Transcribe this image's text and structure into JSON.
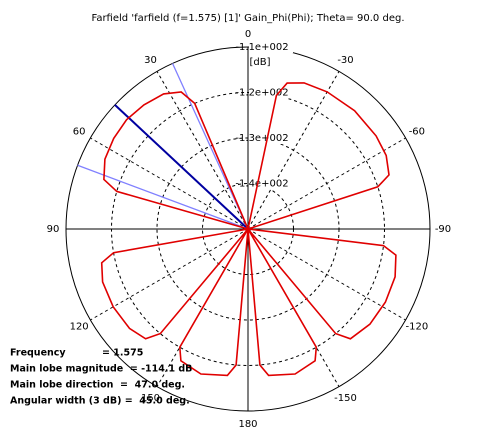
{
  "chart_data": {
    "type": "polar",
    "title": "Farfield 'farfield (f=1.575) [1]' Gain_Phi(Phi); Theta=  90.0 deg.",
    "r_unit": "[dB]",
    "rlim": [
      -150,
      -110
    ],
    "rticks": [
      {
        "value": -110,
        "label": "-1.1e+002"
      },
      {
        "value": -120,
        "label": "-1.2e+002"
      },
      {
        "value": -130,
        "label": "-1.3e+002"
      },
      {
        "value": -140,
        "label": "-1.4e+002"
      }
    ],
    "thetaticks": [
      0,
      30,
      60,
      90,
      120,
      150,
      180,
      -150,
      -120,
      -90,
      -60,
      -30
    ],
    "grid": true,
    "series": [
      {
        "color": "#e00000",
        "theta": [
          23,
          23,
          26,
          32,
          40,
          48,
          56,
          64,
          71,
          74,
          74,
          100,
          100,
          103,
          110,
          120,
          130,
          137,
          140,
          140,
          150,
          150,
          153,
          162,
          172,
          175,
          175,
          -175,
          -175,
          -172,
          -162,
          -153,
          -150,
          -150,
          -140,
          -140,
          -137,
          -128,
          -118,
          -108,
          -100,
          -97,
          -97,
          -72,
          -72,
          -69,
          -62,
          -54,
          -42,
          -30,
          -21,
          -15,
          -12,
          -12
        ],
        "r": [
          -150,
          -120,
          -116.5,
          -115,
          -114.4,
          -114.1,
          -114.4,
          -115,
          -116.5,
          -120,
          -150,
          -150,
          -120,
          -117,
          -116,
          -115.8,
          -116,
          -117,
          -120,
          -150,
          -150,
          -120,
          -117.5,
          -116.5,
          -117.5,
          -120,
          -150,
          -150,
          -120,
          -117.5,
          -116.5,
          -117.5,
          -120,
          -150,
          -150,
          -120,
          -117,
          -116,
          -115.8,
          -116,
          -117,
          -120,
          -150,
          -150,
          -120,
          -116.8,
          -115.6,
          -115.2,
          -115,
          -115.2,
          -115.6,
          -116.8,
          -120,
          -150
        ]
      }
    ],
    "markers": [
      {
        "angle": 47,
        "color": "#0000a0"
      },
      {
        "angle": 24.5,
        "color": "#8080ff"
      },
      {
        "angle": 69.5,
        "color": "#8080ff"
      }
    ],
    "info": [
      "Frequency           = 1.575",
      "Main lobe magnitude  = -114.1 dB",
      "Main lobe direction  =  47.0 deg.",
      "Angular width (3 dB) =  45.0 deg."
    ]
  }
}
